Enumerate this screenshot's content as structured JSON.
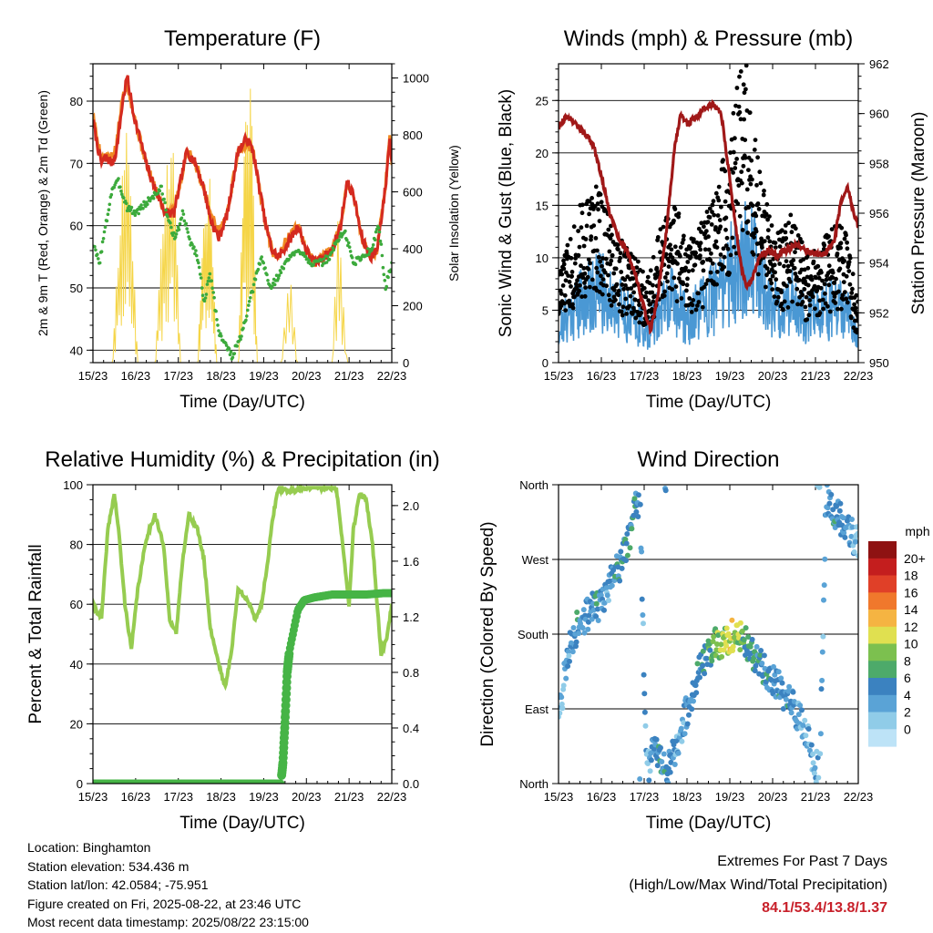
{
  "panels": {
    "temperature": {
      "title": "Temperature (F)",
      "ylabel_left": "2m & 9m T (Red, Orange) & 2m Td (Green)",
      "ylabel_right": "Solar Insolation (Yellow)",
      "xlabel": "Time (Day/UTC)",
      "xticks": [
        "15/23",
        "16/23",
        "17/23",
        "18/23",
        "19/23",
        "20/23",
        "21/23",
        "22/23"
      ],
      "yticks_left": [
        "40",
        "50",
        "60",
        "70",
        "80"
      ],
      "yticks_right": [
        "0",
        "200",
        "400",
        "600",
        "800",
        "1000"
      ]
    },
    "winds": {
      "title": "Winds (mph) & Pressure (mb)",
      "ylabel_left": "Sonic Wind & Gust (Blue, Black)",
      "ylabel_right": "Station Pressure (Maroon)",
      "xlabel": "Time (Day/UTC)",
      "xticks": [
        "15/23",
        "16/23",
        "17/23",
        "18/23",
        "19/23",
        "20/23",
        "21/23",
        "22/23"
      ],
      "yticks_left": [
        "0",
        "5",
        "10",
        "15",
        "20",
        "25"
      ],
      "yticks_right": [
        "950",
        "952",
        "954",
        "956",
        "958",
        "960",
        "962"
      ]
    },
    "humidity": {
      "title": "Relative Humidity (%) & Precipitation (in)",
      "ylabel_left": "Percent & Total Rainfall",
      "xlabel": "Time (Day/UTC)",
      "xticks": [
        "15/23",
        "16/23",
        "17/23",
        "18/23",
        "19/23",
        "20/23",
        "21/23",
        "22/23"
      ],
      "yticks_left": [
        "0",
        "20",
        "40",
        "60",
        "80",
        "100"
      ],
      "yticks_right": [
        "0.0",
        "0.4",
        "0.8",
        "1.2",
        "1.6",
        "2.0"
      ]
    },
    "direction": {
      "title": "Wind Direction",
      "ylabel_left": "Direction (Colored By Speed)",
      "xlabel": "Time (Day/UTC)",
      "xticks": [
        "15/23",
        "16/23",
        "17/23",
        "18/23",
        "19/23",
        "20/23",
        "21/23",
        "22/23"
      ],
      "yticks_left": [
        "North",
        "East",
        "South",
        "West",
        "North"
      ],
      "colorbar_title": "mph",
      "colorbar_labels": [
        "0",
        "2",
        "4",
        "6",
        "8",
        "10",
        "12",
        "14",
        "16",
        "18",
        "20+"
      ]
    }
  },
  "info": {
    "location": "Location: Binghamton",
    "elevation": "Station elevation: 534.436 m",
    "latlon": "Station lat/lon: 42.0584; -75.951",
    "created": "Figure created on Fri, 2025-08-22, at 23:46 UTC",
    "timestamp": "Most recent data timestamp: 2025/08/22 23:15:00"
  },
  "extremes": {
    "line1": "Extremes For Past 7 Days",
    "line2": "(High/Low/Max Wind/Total Precipitation)",
    "values": "84.1/53.4/13.8/1.37"
  },
  "colors": {
    "temp2m": "#d42a20",
    "temp9m": "#f08a24",
    "dewpoint": "#3caa3c",
    "solar": "#f5d547",
    "wind": "#4a98d4",
    "gust": "#000000",
    "pressure": "#a01818",
    "rh": "#96cc50",
    "precip": "#46b446",
    "colorbar": [
      "#bde3f7",
      "#90cce8",
      "#5aa3d6",
      "#3b82c0",
      "#4daa6a",
      "#7cc04f",
      "#e0e050",
      "#f5b442",
      "#f0782c",
      "#e04028",
      "#c41e1e",
      "#8e1212"
    ]
  },
  "chart_data": [
    {
      "type": "line",
      "title": "Temperature (F)",
      "xlabel": "Time (Day/UTC)",
      "ylabel": "2m & 9m T (Red, Orange) & 2m Td (Green)",
      "x_unit": "days since 15/23",
      "xlim": [
        0,
        7
      ],
      "ylim": [
        38,
        86
      ],
      "y2lim": [
        0,
        1050
      ],
      "series": [
        {
          "name": "2m T",
          "axis": "left",
          "x": [
            0,
            0.1,
            0.2,
            0.3,
            0.45,
            0.55,
            0.7,
            0.8,
            0.95,
            1.1,
            1.25,
            1.45,
            1.7,
            1.9,
            2.05,
            2.2,
            2.4,
            2.6,
            2.75,
            2.95,
            3.15,
            3.4,
            3.6,
            3.75,
            3.9,
            4.05,
            4.2,
            4.35,
            4.55,
            4.8,
            5.0,
            5.2,
            5.4,
            5.6,
            5.8,
            5.95,
            6.1,
            6.3,
            6.5,
            6.65,
            6.85,
            6.95,
            7.0
          ],
          "values": [
            77,
            73,
            70,
            71,
            70,
            72,
            80,
            84,
            78,
            74,
            70,
            66,
            62,
            62,
            67,
            72,
            70,
            66,
            61,
            58,
            62,
            72,
            74,
            72,
            66,
            60,
            56,
            55,
            57,
            60,
            56,
            54,
            55,
            56,
            60,
            67,
            65,
            58,
            55,
            56,
            66,
            74,
            70
          ]
        },
        {
          "name": "9m T",
          "axis": "left",
          "x": [
            0,
            0.1,
            0.2,
            0.3,
            0.45,
            0.55,
            0.7,
            0.8,
            0.95,
            1.1,
            1.25,
            1.45,
            1.7,
            1.9,
            2.05,
            2.2,
            2.4,
            2.6,
            2.75,
            2.95,
            3.15,
            3.4,
            3.6,
            3.75,
            3.9,
            4.05,
            4.2,
            4.35,
            4.55,
            4.8,
            5.0,
            5.2,
            5.4,
            5.6,
            5.8,
            5.95,
            6.1,
            6.3,
            6.5,
            6.65,
            6.85,
            6.95,
            7.0
          ],
          "values": [
            78,
            74,
            71,
            71,
            71,
            73,
            81,
            83,
            78,
            74,
            70,
            66,
            62,
            63,
            67,
            72,
            70,
            66,
            62,
            59,
            62,
            72,
            73,
            72,
            66,
            60,
            56,
            55,
            58,
            60,
            56,
            54,
            55,
            56,
            60,
            67,
            65,
            58,
            55,
            56,
            66,
            75,
            70
          ]
        },
        {
          "name": "2m Td",
          "axis": "left",
          "x": [
            0,
            0.15,
            0.3,
            0.45,
            0.6,
            0.8,
            1.0,
            1.3,
            1.6,
            1.8,
            1.95,
            2.1,
            2.25,
            2.45,
            2.6,
            2.75,
            2.95,
            3.1,
            3.25,
            3.4,
            3.55,
            3.75,
            3.95,
            4.15,
            4.35,
            4.6,
            4.9,
            5.1,
            5.35,
            5.55,
            5.75,
            5.9,
            6.1,
            6.3,
            6.5,
            6.7,
            6.85,
            7.0
          ],
          "values": [
            57,
            54,
            60,
            66,
            67,
            63,
            62,
            64,
            66,
            60,
            58,
            62,
            58,
            55,
            48,
            52,
            43,
            41,
            39,
            41,
            44,
            50,
            55,
            50,
            52,
            55,
            56,
            54,
            54,
            55,
            58,
            59,
            54,
            55,
            56,
            60,
            50,
            54
          ]
        },
        {
          "name": "Solar Insolation",
          "axis": "right",
          "x": [
            0.45,
            0.65,
            0.8,
            1.05,
            1.45,
            1.7,
            1.9,
            2.05,
            2.45,
            2.6,
            2.75,
            2.9,
            3.4,
            3.55,
            3.7,
            3.85,
            4.4,
            4.6,
            4.8,
            5.4,
            5.6,
            5.75,
            5.95,
            6.45,
            6.6,
            6.8,
            6.95
          ],
          "values": [
            0,
            600,
            950,
            0,
            0,
            700,
            800,
            0,
            0,
            600,
            700,
            0,
            0,
            850,
            1000,
            0,
            0,
            350,
            0,
            0,
            500,
            600,
            0,
            0,
            500,
            850,
            0
          ]
        }
      ]
    },
    {
      "type": "line",
      "title": "Winds (mph) & Pressure (mb)",
      "xlabel": "Time (Day/UTC)",
      "ylabel": "Sonic Wind & Gust (Blue, Black)",
      "x_unit": "days since 15/23",
      "xlim": [
        0,
        7
      ],
      "ylim": [
        0,
        28.5
      ],
      "y2lim": [
        950,
        962
      ],
      "series": [
        {
          "name": "Sonic Wind",
          "axis": "left",
          "x": [
            0,
            0.3,
            0.6,
            0.9,
            1.2,
            1.5,
            1.8,
            2.1,
            2.4,
            2.7,
            3.0,
            3.3,
            3.6,
            3.9,
            4.2,
            4.4,
            4.6,
            4.9,
            5.2,
            5.5,
            5.8,
            6.1,
            6.4,
            6.7,
            7.0
          ],
          "values": [
            3,
            5,
            6,
            7,
            6,
            5,
            4,
            3,
            5,
            6,
            4,
            5,
            6,
            8,
            9,
            11,
            9,
            6,
            5,
            6,
            4,
            5,
            5,
            5,
            2
          ]
        },
        {
          "name": "Gust",
          "axis": "left",
          "x": [
            0,
            0.3,
            0.6,
            0.9,
            1.2,
            1.5,
            1.8,
            2.1,
            2.4,
            2.7,
            3.0,
            3.3,
            3.6,
            3.9,
            4.1,
            4.3,
            4.5,
            4.7,
            4.9,
            5.2,
            5.5,
            5.8,
            6.1,
            6.4,
            6.7,
            7.0
          ],
          "values": [
            6,
            9,
            11,
            12,
            10,
            8,
            7,
            6,
            9,
            11,
            8,
            9,
            11,
            14,
            17,
            21,
            18,
            13,
            10,
            9,
            10,
            7,
            8,
            9,
            9,
            4
          ]
        },
        {
          "name": "Station Pressure",
          "axis": "right",
          "x": [
            0,
            0.2,
            0.4,
            0.6,
            0.8,
            1.0,
            1.2,
            1.4,
            1.6,
            1.8,
            2.0,
            2.15,
            2.3,
            2.5,
            2.7,
            2.85,
            3.0,
            3.2,
            3.4,
            3.6,
            3.8,
            3.95,
            4.1,
            4.25,
            4.4,
            4.55,
            4.7,
            4.9,
            5.1,
            5.3,
            5.5,
            5.7,
            5.9,
            6.1,
            6.3,
            6.45,
            6.6,
            6.75,
            6.9,
            7.0
          ],
          "values": [
            959.5,
            959.9,
            959.6,
            959.2,
            958.8,
            957.5,
            956,
            955,
            954.5,
            953.5,
            952.2,
            951.3,
            952.5,
            955,
            958.5,
            960,
            959.6,
            959.8,
            960.2,
            960.4,
            960,
            958,
            956,
            954,
            953,
            953.5,
            954.3,
            954.5,
            954.3,
            954.5,
            954.7,
            954.6,
            954.4,
            954.3,
            954.5,
            955,
            956.5,
            957,
            956,
            955.5
          ]
        }
      ]
    },
    {
      "type": "line",
      "title": "Relative Humidity (%) & Precipitation (in)",
      "xlabel": "Time (Day/UTC)",
      "ylabel": "Percent & Total Rainfall",
      "x_unit": "days since 15/23",
      "xlim": [
        0,
        7
      ],
      "ylim": [
        0,
        100
      ],
      "y2lim": [
        0,
        2.15
      ],
      "series": [
        {
          "name": "Relative Humidity",
          "axis": "left",
          "x": [
            0,
            0.2,
            0.35,
            0.5,
            0.6,
            0.75,
            0.9,
            1.05,
            1.25,
            1.45,
            1.65,
            1.8,
            1.95,
            2.1,
            2.25,
            2.45,
            2.6,
            2.75,
            2.95,
            3.1,
            3.25,
            3.4,
            3.6,
            3.8,
            3.95,
            4.1,
            4.2,
            4.35,
            4.55,
            4.75,
            4.9,
            5.1,
            5.3,
            5.5,
            5.7,
            5.85,
            6.0,
            6.1,
            6.25,
            6.4,
            6.55,
            6.75,
            6.9,
            7.0
          ],
          "values": [
            60,
            55,
            85,
            97,
            85,
            60,
            45,
            65,
            82,
            90,
            80,
            55,
            50,
            75,
            90,
            85,
            75,
            52,
            40,
            32,
            45,
            65,
            62,
            55,
            60,
            75,
            88,
            99,
            98,
            98,
            99,
            99,
            99,
            99,
            99,
            80,
            60,
            85,
            97,
            95,
            80,
            43,
            50,
            60
          ]
        },
        {
          "name": "Total Precipitation",
          "axis": "right",
          "x": [
            0,
            4.4,
            4.45,
            4.5,
            4.55,
            4.6,
            4.7,
            4.8,
            4.95,
            5.2,
            5.6,
            6.0,
            6.4,
            6.8,
            7.0
          ],
          "values": [
            0,
            0,
            0.15,
            0.45,
            0.8,
            0.95,
            1.1,
            1.25,
            1.32,
            1.34,
            1.36,
            1.36,
            1.36,
            1.37,
            1.37
          ]
        }
      ]
    },
    {
      "type": "scatter",
      "title": "Wind Direction",
      "xlabel": "Time (Day/UTC)",
      "ylabel": "Direction (Colored By Speed)",
      "x_unit": "days since 15/23",
      "xlim": [
        0,
        7
      ],
      "ylim": [
        0,
        360
      ],
      "series": [
        {
          "name": "Wind Direction",
          "x": [
            0.05,
            0.15,
            0.3,
            0.45,
            0.6,
            0.75,
            0.9,
            1.05,
            1.2,
            1.4,
            1.6,
            1.75,
            1.9,
            2.05,
            2.2,
            2.35,
            2.5,
            2.65,
            2.8,
            2.95,
            3.1,
            3.25,
            3.45,
            3.6,
            3.75,
            3.9,
            4.05,
            4.2,
            4.35,
            4.5,
            4.65,
            4.8,
            4.95,
            5.1,
            5.25,
            5.4,
            5.6,
            5.8,
            5.95,
            6.1,
            6.25,
            6.4,
            6.55,
            6.7,
            6.85,
            6.95
          ],
          "values": [
            90,
            135,
            170,
            190,
            200,
            210,
            215,
            220,
            240,
            260,
            290,
            320,
            350,
            15,
            35,
            40,
            10,
            30,
            55,
            80,
            105,
            130,
            150,
            165,
            170,
            175,
            178,
            176,
            170,
            160,
            150,
            140,
            125,
            120,
            110,
            100,
            80,
            60,
            30,
            10,
            345,
            330,
            320,
            310,
            300,
            290
          ],
          "speeds": [
            2,
            3,
            4,
            5,
            4,
            4,
            5,
            3,
            4,
            5,
            6,
            5,
            4,
            3,
            4,
            5,
            4,
            4,
            3,
            3,
            4,
            5,
            6,
            8,
            9,
            10,
            11,
            9,
            7,
            6,
            5,
            5,
            4,
            4,
            5,
            4,
            3,
            3,
            2,
            3,
            4,
            5,
            4,
            4,
            3,
            2
          ]
        }
      ]
    }
  ]
}
